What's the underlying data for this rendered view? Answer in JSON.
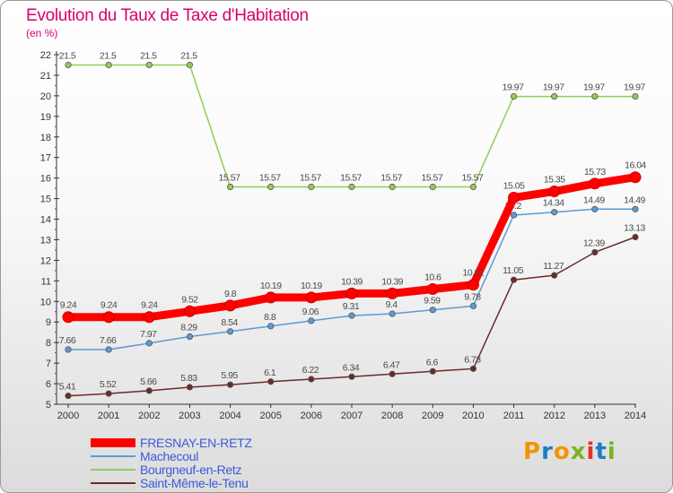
{
  "chart_data": {
    "type": "line",
    "title": "Evolution du Taux de Taxe d'Habitation",
    "subtitle": "(en %)",
    "x": [
      "2000",
      "2001",
      "2002",
      "2003",
      "2004",
      "2005",
      "2006",
      "2007",
      "2008",
      "2009",
      "2010",
      "2011",
      "2012",
      "2013",
      "2014"
    ],
    "ylim": [
      5,
      22
    ],
    "yticks": [
      5,
      6,
      7,
      8,
      9,
      10,
      11,
      12,
      13,
      14,
      15,
      16,
      17,
      18,
      19,
      20,
      21,
      22
    ],
    "grid": false,
    "legend_position": "bottom-left",
    "series": [
      {
        "name": "FRESNAY-EN-RETZ",
        "color": "#ff0000",
        "values": [
          9.24,
          9.24,
          9.24,
          9.52,
          9.8,
          10.19,
          10.19,
          10.39,
          10.39,
          10.6,
          10.81,
          15.05,
          15.35,
          15.73,
          16.04
        ],
        "labels": [
          "9.24",
          "9.24",
          "9.24",
          "9.52",
          "9.8",
          "10.19",
          "10.19",
          "10.39",
          "10.39",
          "10.6",
          "10.81",
          "15.05",
          "15.35",
          "15.73",
          "16.04"
        ]
      },
      {
        "name": "Machecoul",
        "color": "#5b9bd5",
        "values": [
          7.66,
          7.66,
          7.97,
          8.29,
          8.54,
          8.8,
          9.06,
          9.31,
          9.4,
          9.59,
          9.78,
          14.2,
          14.34,
          14.49,
          14.49
        ],
        "labels": [
          "7.66",
          "7.66",
          "7.97",
          "8.29",
          "8.54",
          "8.8",
          "9.06",
          "9.31",
          "9.4",
          "9.59",
          "9.78",
          "14.2",
          "14.34",
          "14.49",
          "14.49"
        ]
      },
      {
        "name": "Bourgneuf-en-Retz",
        "color": "#8fce5a",
        "values": [
          21.5,
          21.5,
          21.5,
          21.5,
          15.57,
          15.57,
          15.57,
          15.57,
          15.57,
          15.57,
          15.57,
          19.97,
          19.97,
          19.97,
          19.97
        ],
        "labels": [
          "21.5",
          "21.5",
          "21.5",
          "21.5",
          "15.57",
          "15.57",
          "15.57",
          "15.57",
          "15.57",
          "15.57",
          "15.57",
          "19.97",
          "19.97",
          "19.97",
          "19.97"
        ]
      },
      {
        "name": "Saint-Même-le-Tenu",
        "color": "#6b2a2a",
        "values": [
          5.41,
          5.52,
          5.66,
          5.83,
          5.95,
          6.1,
          6.22,
          6.34,
          6.47,
          6.6,
          6.73,
          11.05,
          11.27,
          12.39,
          13.13
        ],
        "labels": [
          "5.41",
          "5.52",
          "5.66",
          "5.83",
          "5.95",
          "6.1",
          "6.22",
          "6.34",
          "6.47",
          "6.6",
          "6.73",
          "11.05",
          "11.27",
          "12.39",
          "13.13"
        ]
      }
    ]
  },
  "logo": {
    "text": "Proxiti",
    "colors": [
      "#f29400",
      "#1c7fc4",
      "#f29400",
      "#7ab51d",
      "#e5302a",
      "#1c7fc4",
      "#7ab51d"
    ]
  }
}
